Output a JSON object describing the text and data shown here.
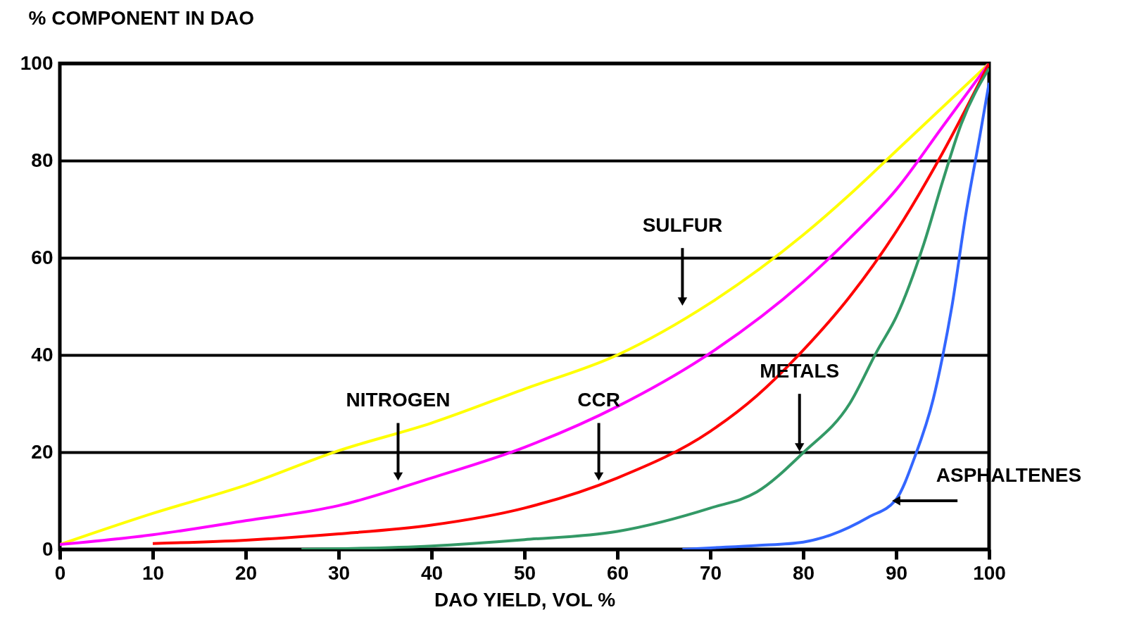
{
  "chart_data": {
    "type": "line",
    "xlabel": "DAO YIELD, VOL %",
    "ylabel": "% COMPONENT IN DAO",
    "xlim": [
      0,
      100
    ],
    "ylim": [
      0,
      100
    ],
    "xticks": [
      0,
      10,
      20,
      30,
      40,
      50,
      60,
      70,
      80,
      90,
      100
    ],
    "yticks": [
      0,
      20,
      40,
      60,
      80,
      100
    ],
    "grid": "y",
    "series": [
      {
        "color": "#ffff00",
        "x": [
          0,
          10,
          20,
          30,
          40,
          50,
          60,
          70,
          80,
          85,
          90,
          100
        ],
        "values": [
          1,
          7.4,
          13.2,
          20.3,
          26,
          33,
          40,
          50.7,
          64.7,
          73,
          82,
          100
        ]
      },
      {
        "color": "#ff00ff",
        "x": [
          0,
          10,
          20,
          30,
          40,
          50,
          60,
          70,
          80,
          85,
          90,
          95,
          100
        ],
        "values": [
          1,
          3,
          5.9,
          9,
          14.7,
          21,
          29.4,
          40.4,
          55,
          64,
          74,
          87,
          100
        ]
      },
      {
        "color": "#ff0000",
        "x": [
          10,
          20,
          30,
          40,
          50,
          60,
          70,
          75,
          80,
          85,
          90,
          95,
          100
        ],
        "values": [
          1.2,
          1.9,
          3.2,
          5,
          8.5,
          14.7,
          24.3,
          31.6,
          41,
          52,
          65.4,
          81.6,
          100
        ]
      },
      {
        "color": "#339966",
        "x": [
          26,
          40,
          50,
          60,
          70,
          75,
          80,
          85,
          88,
          90,
          93,
          95,
          97,
          100
        ],
        "values": [
          0,
          0.7,
          2,
          3.7,
          8.5,
          11.8,
          19.9,
          30,
          41,
          47.8,
          63,
          75.7,
          87.5,
          99
        ]
      },
      {
        "color": "#3366ff",
        "x": [
          67,
          70,
          75,
          80,
          83,
          87,
          90,
          92,
          94,
          95,
          96,
          97.5,
          99,
          100
        ],
        "values": [
          0,
          0.3,
          0.8,
          1.5,
          3,
          6.6,
          10.3,
          19,
          31,
          39.7,
          50,
          69,
          85,
          96
        ]
      }
    ],
    "annotations": [
      {
        "text": "SULFUR",
        "x": 67,
        "y": 51
      },
      {
        "text": "NITROGEN",
        "x": 36.4,
        "y": 15
      },
      {
        "text": "CCR",
        "x": 58,
        "y": 15
      },
      {
        "text": "METALS",
        "x": 79.6,
        "y": 21
      },
      {
        "text": "ASPHALTENES",
        "x": 90,
        "y": 10
      }
    ]
  }
}
